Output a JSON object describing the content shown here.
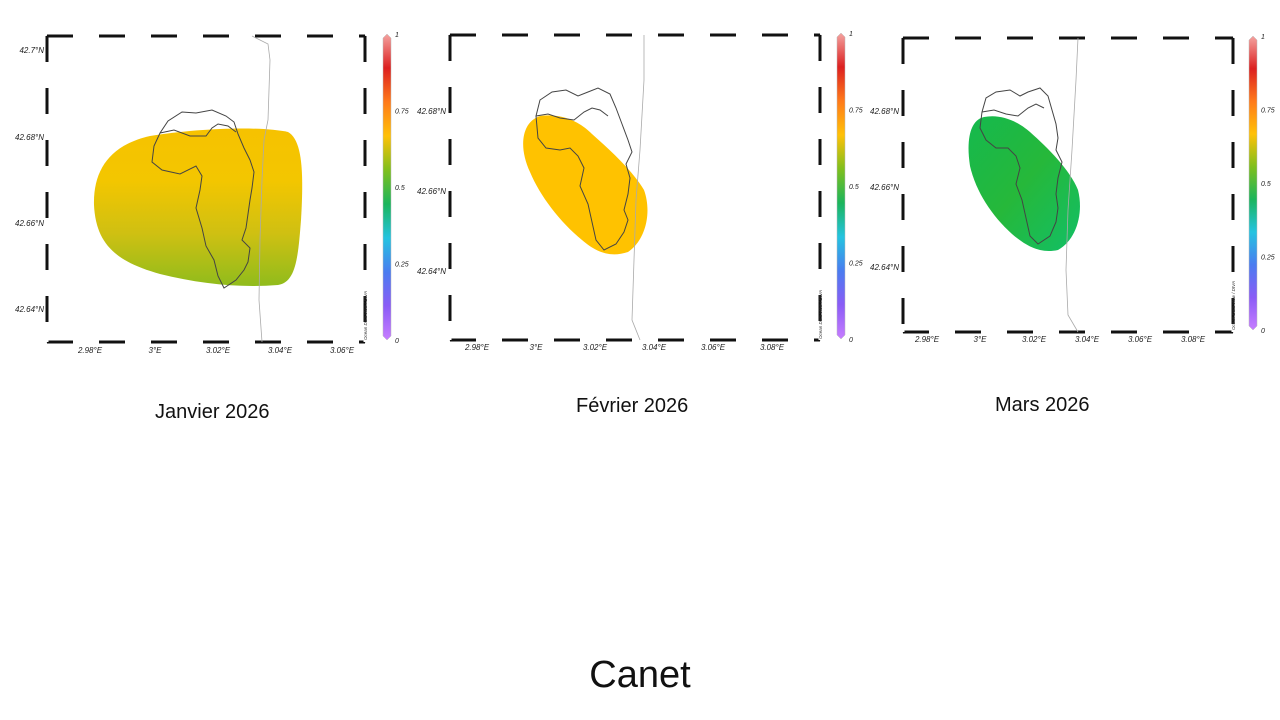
{
  "slide": {
    "title": "Canet"
  },
  "colorbar": {
    "stops": [
      "#c77dff",
      "#8a5cf6",
      "#4a7cf0",
      "#24c3e0",
      "#1bb55c",
      "#7fbf1d",
      "#ffc107",
      "#ff7a1a",
      "#dc2020",
      "#f4a3a0"
    ],
    "ticks": [
      "0",
      "0.25",
      "0.5",
      "0.75",
      "1"
    ],
    "credit": "Ocean Data View / DIVA"
  },
  "maps": [
    {
      "caption": "Janvier 2026",
      "lat_ticks": [
        "42.7°N",
        "42.68°N",
        "42.66°N",
        "42.64°N"
      ],
      "lon_ticks": [
        "2.98°E",
        "3°E",
        "3.02°E",
        "3.04°E",
        "3.06°E"
      ],
      "field_colors": [
        "#f6c200",
        "#f3c600",
        "#cfc012",
        "#90bc1c"
      ]
    },
    {
      "caption": "Février 2026",
      "lat_ticks": [
        "42.68°N",
        "42.66°N",
        "42.64°N"
      ],
      "lon_ticks": [
        "2.98°E",
        "3°E",
        "3.02°E",
        "3.04°E",
        "3.06°E",
        "3.08°E"
      ],
      "field_colors": [
        "#ffc200",
        "#ffc200"
      ]
    },
    {
      "caption": "Mars 2026",
      "lat_ticks": [
        "42.68°N",
        "42.66°N",
        "42.64°N"
      ],
      "lon_ticks": [
        "2.98°E",
        "3°E",
        "3.02°E",
        "3.04°E",
        "3.06°E",
        "3.08°E"
      ],
      "field_colors": [
        "#15b94e",
        "#26b83a",
        "#12bf66"
      ]
    }
  ]
}
